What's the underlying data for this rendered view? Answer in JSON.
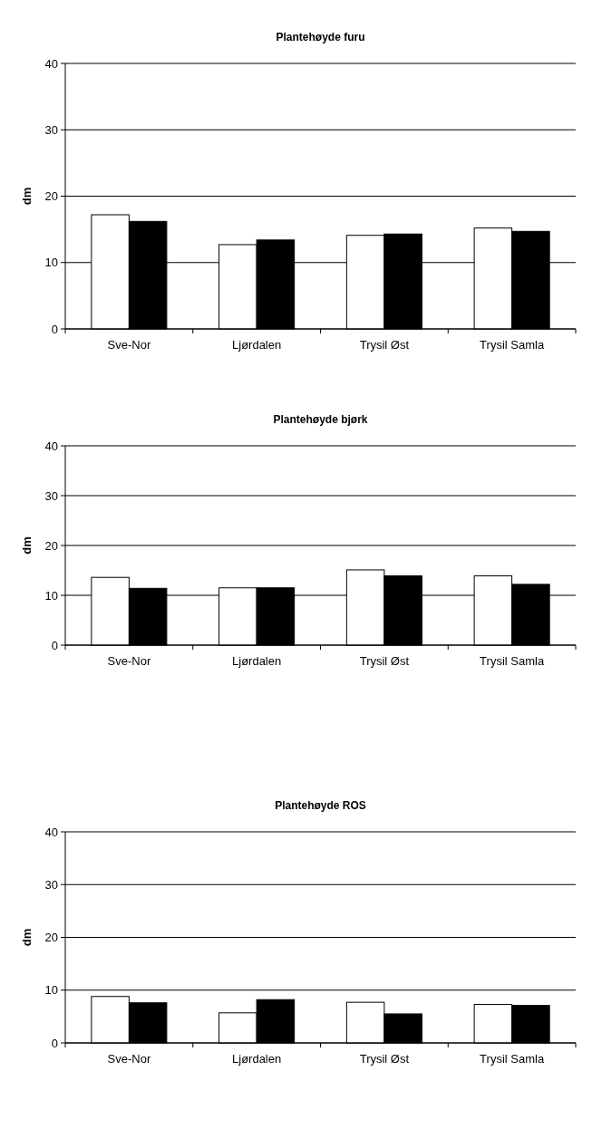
{
  "chart_data": [
    {
      "type": "bar",
      "title": "Plantehøyde furu",
      "ylabel": "dm",
      "categories": [
        "Sve-Nor",
        "Ljørdalen",
        "Trysil Øst",
        "Trysil Samla"
      ],
      "series": [
        {
          "color": "#ffffff",
          "values": [
            17.2,
            12.7,
            14.1,
            15.2
          ]
        },
        {
          "color": "#000000",
          "values": [
            16.2,
            13.4,
            14.3,
            14.7
          ]
        }
      ],
      "ylim": [
        0,
        40
      ],
      "yticks": [
        0,
        10,
        20,
        30,
        40
      ],
      "grid": "y"
    },
    {
      "type": "bar",
      "title": "Plantehøyde bjørk",
      "ylabel": "dm",
      "categories": [
        "Sve-Nor",
        "Ljørdalen",
        "Trysil Øst",
        "Trysil Samla"
      ],
      "series": [
        {
          "color": "#ffffff",
          "values": [
            13.6,
            11.5,
            15.1,
            13.9
          ]
        },
        {
          "color": "#000000",
          "values": [
            11.4,
            11.5,
            13.9,
            12.2
          ]
        }
      ],
      "ylim": [
        0,
        40
      ],
      "yticks": [
        0,
        10,
        20,
        30,
        40
      ],
      "grid": "y"
    },
    {
      "type": "bar",
      "title": "Plantehøyde ROS",
      "ylabel": "dm",
      "categories": [
        "Sve-Nor",
        "Ljørdalen",
        "Trysil Øst",
        "Trysil Samla"
      ],
      "series": [
        {
          "color": "#ffffff",
          "values": [
            8.8,
            5.7,
            7.7,
            7.3
          ]
        },
        {
          "color": "#000000",
          "values": [
            7.6,
            8.2,
            5.5,
            7.1
          ]
        }
      ],
      "ylim": [
        0,
        40
      ],
      "yticks": [
        0,
        10,
        20,
        30,
        40
      ],
      "grid": "y"
    }
  ]
}
